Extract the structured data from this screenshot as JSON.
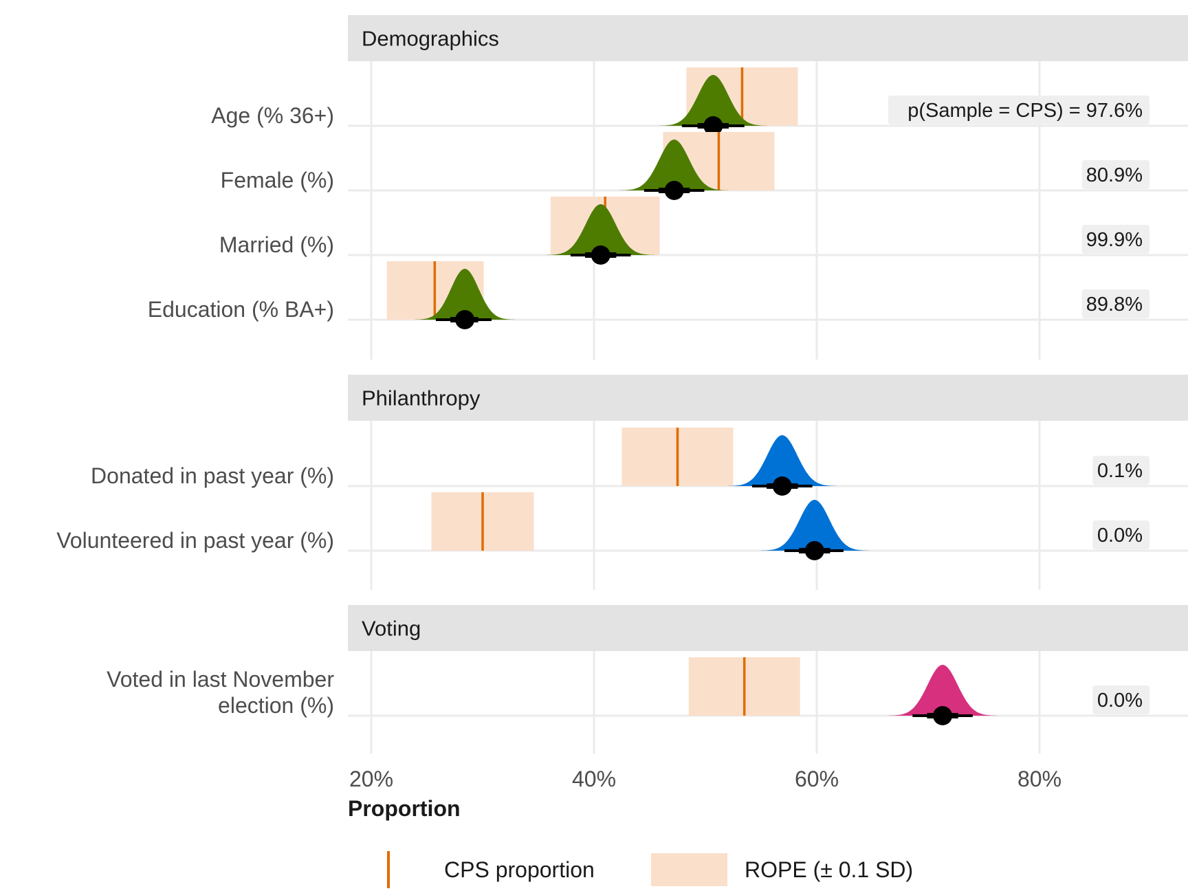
{
  "chart_data": {
    "type": "halfeye",
    "xlabel": "Proportion",
    "xlim": [
      18,
      93
    ],
    "x_ticks": [
      20,
      40,
      60,
      80
    ],
    "x_tick_labels": [
      "20%",
      "40%",
      "60%",
      "80%"
    ],
    "grid": true,
    "panels": [
      {
        "title": "Demographics",
        "fill": "#4d7c00",
        "rows": [
          {
            "label": "Age (% 36+)",
            "cps": 53.3,
            "rope": [
              48.3,
              58.3
            ],
            "mean": 50.7,
            "sd": 1.35,
            "ci66": [
              49.3,
              52.1
            ],
            "ci95": [
              47.9,
              53.5
            ],
            "p_label": "p(Sample = CPS) = 97.6%"
          },
          {
            "label": "Female (%)",
            "cps": 51.2,
            "rope": [
              46.2,
              56.2
            ],
            "mean": 47.2,
            "sd": 1.35,
            "ci66": [
              45.8,
              48.6
            ],
            "ci95": [
              44.5,
              49.9
            ],
            "p_label": "80.9%"
          },
          {
            "label": "Married (%)",
            "cps": 41.0,
            "rope": [
              36.1,
              45.9
            ],
            "mean": 40.6,
            "sd": 1.35,
            "ci66": [
              39.2,
              42.0
            ],
            "ci95": [
              37.9,
              43.3
            ],
            "p_label": "99.9%"
          },
          {
            "label": "Education (% BA+)",
            "cps": 25.7,
            "rope": [
              21.4,
              30.1
            ],
            "mean": 28.4,
            "sd": 1.25,
            "ci66": [
              27.1,
              29.6
            ],
            "ci95": [
              25.8,
              30.8
            ],
            "p_label": "89.8%"
          }
        ]
      },
      {
        "title": "Philanthropy",
        "fill": "#0072d6",
        "rows": [
          {
            "label": "Donated in past year (%)",
            "cps": 47.5,
            "rope": [
              42.5,
              52.5
            ],
            "mean": 56.9,
            "sd": 1.35,
            "ci66": [
              55.5,
              58.3
            ],
            "ci95": [
              54.2,
              59.6
            ],
            "p_label": "0.1%"
          },
          {
            "label": "Volunteered in past year (%)",
            "cps": 30.0,
            "rope": [
              25.4,
              34.6
            ],
            "mean": 59.8,
            "sd": 1.35,
            "ci66": [
              58.4,
              61.2
            ],
            "ci95": [
              57.1,
              62.4
            ],
            "p_label": "0.0%"
          }
        ]
      },
      {
        "title": "Voting",
        "fill": "#d6307e",
        "rows": [
          {
            "label": "Voted in last November election (%)",
            "label_lines": [
              "Voted in last November",
              "election (%)"
            ],
            "cps": 53.5,
            "rope": [
              48.5,
              58.5
            ],
            "mean": 71.3,
            "sd": 1.35,
            "ci66": [
              69.9,
              72.7
            ],
            "ci95": [
              68.6,
              74.0
            ],
            "p_label": "0.0%"
          }
        ]
      }
    ],
    "legend": {
      "position": "bottom",
      "items": [
        {
          "label": "CPS proportion",
          "kind": "line",
          "color": "#e06c00"
        },
        {
          "label": "ROPE (± 0.1 SD)",
          "kind": "rect",
          "color": "#fadfcb"
        }
      ]
    },
    "colors": {
      "cps_line": "#e06c00",
      "rope_fill": "#fadfcb",
      "interval": "#000000",
      "strip_bg": "#e3e3e3",
      "grid": "#ebebeb",
      "label_box": "#efefef"
    }
  }
}
